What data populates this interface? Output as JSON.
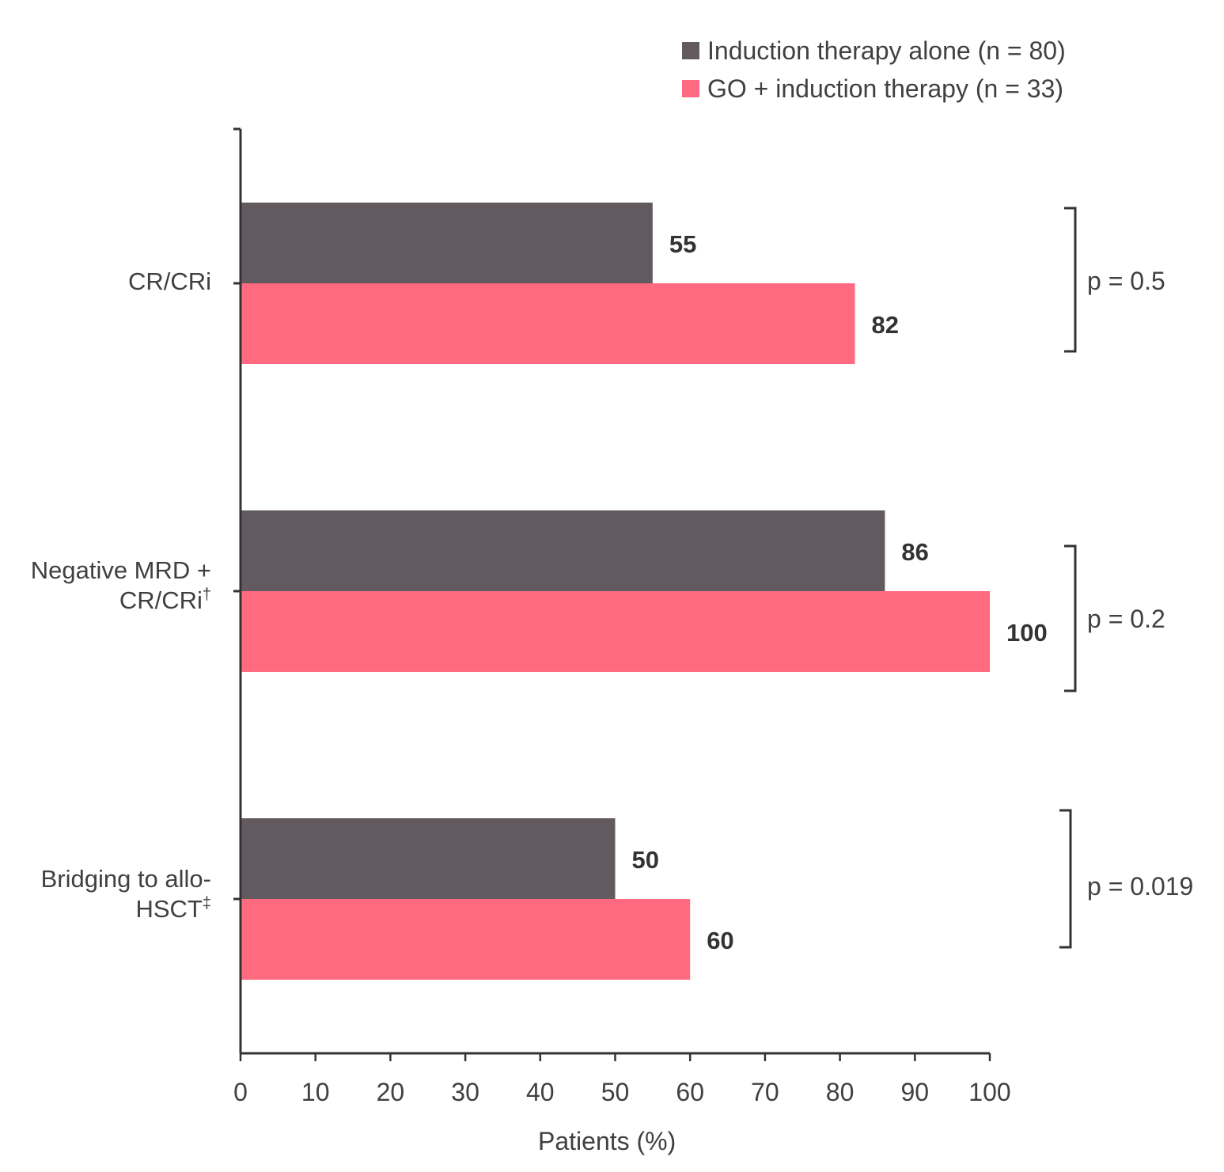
{
  "chart_data": {
    "type": "bar",
    "orientation": "horizontal",
    "categories": [
      {
        "line1": "CR/CRi",
        "line2": "",
        "sup": ""
      },
      {
        "line1": "Negative MRD +",
        "line2": "CR/CRi",
        "sup": "†"
      },
      {
        "line1": "Bridging to allo-",
        "line2": "HSCT",
        "sup": "‡"
      }
    ],
    "series": [
      {
        "name": "Induction therapy alone (n = 80)",
        "color": "#635a5f",
        "values": [
          55,
          86,
          50
        ]
      },
      {
        "name": "GO + induction therapy (n = 33)",
        "color": "#ff6a80",
        "values": [
          82,
          100,
          60
        ]
      }
    ],
    "data_labels": [
      [
        "55",
        "86",
        "50"
      ],
      [
        "82",
        "100",
        "60"
      ]
    ],
    "p_values": [
      "p = 0.5",
      "p = 0.2",
      "p = 0.019"
    ],
    "xlabel": "Patients (%)",
    "xlim": [
      0,
      100
    ],
    "xticks": [
      "0",
      "10",
      "20",
      "30",
      "40",
      "50",
      "60",
      "70",
      "80",
      "90",
      "100"
    ],
    "legend_position": "top-right",
    "grid": false
  }
}
